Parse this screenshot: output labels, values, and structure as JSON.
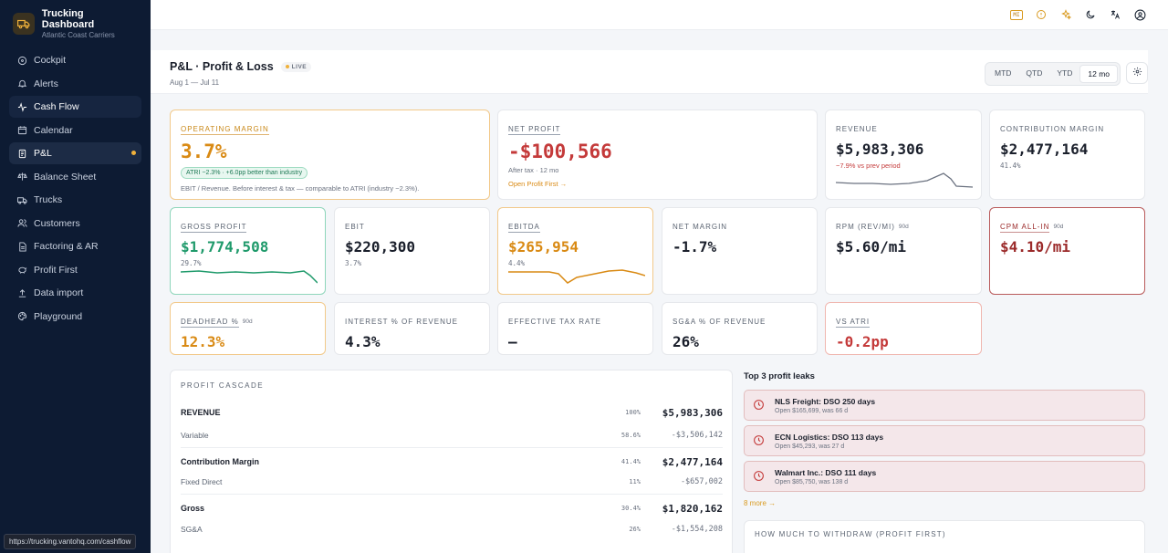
{
  "app": {
    "title": "Trucking Dashboard",
    "subtitle": "Atlantic Coast Carriers"
  },
  "nav": [
    {
      "label": "Cockpit",
      "icon": "steering-wheel-icon"
    },
    {
      "label": "Alerts",
      "icon": "bell-icon"
    },
    {
      "label": "Cash Flow",
      "icon": "pulse-icon",
      "state": "hovered"
    },
    {
      "label": "Calendar",
      "icon": "calendar-icon"
    },
    {
      "label": "P&L",
      "icon": "receipt-icon",
      "state": "active",
      "dot": true
    },
    {
      "label": "Balance Sheet",
      "icon": "scale-icon"
    },
    {
      "label": "Trucks",
      "icon": "truck-icon"
    },
    {
      "label": "Customers",
      "icon": "users-icon"
    },
    {
      "label": "Factoring & AR",
      "icon": "document-icon"
    },
    {
      "label": "Profit First",
      "icon": "piggy-bank-icon"
    },
    {
      "label": "Data import",
      "icon": "upload-icon"
    },
    {
      "label": "Playground",
      "icon": "palette-icon"
    }
  ],
  "status_url": "https://trucking.vantohq.com/cashflow",
  "topbar": {
    "badge": "MI"
  },
  "header": {
    "title": "P&L · Profit & Loss",
    "live": "LIVE",
    "range": "Aug 1 — Jul 11",
    "periods": [
      "MTD",
      "QTD",
      "YTD",
      "12 mo"
    ],
    "selected_period": "12 mo"
  },
  "cards": {
    "operating_margin": {
      "label": "OPERATING MARGIN",
      "value": "3.7%",
      "pill": "ATRI −2.3% · +6.0pp better than industry",
      "note": "EBIT / Revenue. Before interest & tax — comparable to ATRI (industry −2.3%)."
    },
    "net_profit": {
      "label": "NET PROFIT",
      "value": "-$100,566",
      "sub": "After tax · 12 mo",
      "link": "Open Profit First →"
    },
    "revenue": {
      "label": "REVENUE",
      "value": "$5,983,306",
      "sub": "−7.9% vs prev period"
    },
    "contribution_margin": {
      "label": "CONTRIBUTION MARGIN",
      "value": "$2,477,164",
      "sub": "41.4%"
    },
    "gross_profit": {
      "label": "GROSS PROFIT",
      "value": "$1,774,508",
      "sub": "29.7%"
    },
    "ebit": {
      "label": "EBIT",
      "value": "$220,300",
      "sub": "3.7%"
    },
    "ebitda": {
      "label": "EBITDA",
      "value": "$265,954",
      "sub": "4.4%"
    },
    "net_margin": {
      "label": "NET MARGIN",
      "value": "-1.7%"
    },
    "rpm": {
      "label": "RPM (REV/MI)",
      "tag": "90d",
      "value": "$5.60/mi"
    },
    "cpm": {
      "label": "CPM ALL-IN",
      "tag": "90d",
      "value": "$4.10/mi"
    },
    "deadhead": {
      "label": "DEADHEAD %",
      "tag": "90d",
      "value": "12.3%"
    },
    "interest": {
      "label": "INTEREST % OF REVENUE",
      "value": "4.3%"
    },
    "tax_rate": {
      "label": "EFFECTIVE TAX RATE",
      "value": "—"
    },
    "sga": {
      "label": "SG&A % OF REVENUE",
      "value": "26%"
    },
    "vs_atri": {
      "label": "VS ATRI",
      "value": "-0.2pp"
    }
  },
  "cascade": {
    "title": "PROFIT CASCADE",
    "rows": [
      {
        "name": "REVENUE",
        "pct": "100%",
        "amount": "$5,983,306",
        "kind": "major"
      },
      {
        "name": "Variable",
        "pct": "58.6%",
        "amount": "-$3,506,142",
        "kind": "minor"
      },
      {
        "name": "Contribution Margin",
        "pct": "41.4%",
        "amount": "$2,477,164",
        "kind": "major"
      },
      {
        "name": "Fixed Direct",
        "pct": "11%",
        "amount": "-$657,002",
        "kind": "minor"
      },
      {
        "name": "Gross",
        "pct": "30.4%",
        "amount": "$1,820,162",
        "kind": "major"
      },
      {
        "name": "SG&A",
        "pct": "26%",
        "amount": "-$1,554,208",
        "kind": "minor"
      }
    ]
  },
  "leaks": {
    "title": "Top 3 profit leaks",
    "items": [
      {
        "title": "NLS Freight: DSO 250 days",
        "sub": "Open $165,699, was 66 d"
      },
      {
        "title": "ECN Logistics: DSO 113 days",
        "sub": "Open $45,293, was 27 d"
      },
      {
        "title": "Walmart Inc.: DSO 111 days",
        "sub": "Open $85,750, was 138 d"
      }
    ],
    "more": "8 more →"
  },
  "withdraw": {
    "title": "HOW MUCH TO WITHDRAW (PROFIT FIRST)"
  },
  "colors": {
    "sidebar": "#0d1b33",
    "accent": "#d98a14",
    "negative": "#c43a3a",
    "positive": "#1f9a6b",
    "dark_red": "#9b2a2a"
  }
}
